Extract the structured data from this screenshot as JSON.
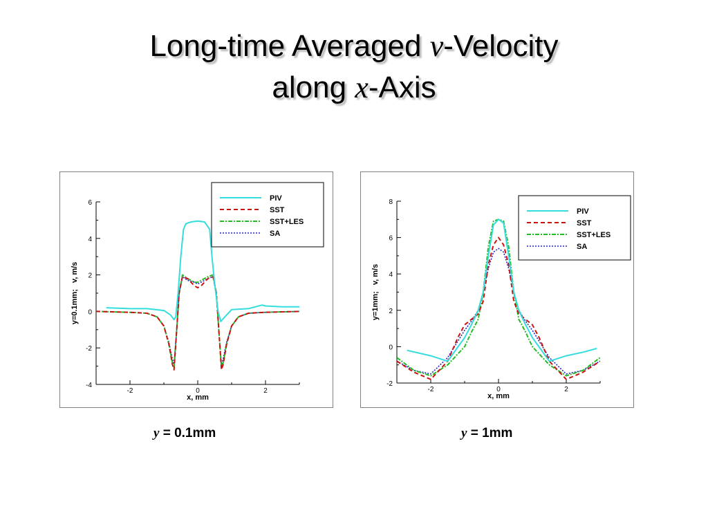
{
  "slide": {
    "title_line1_a": "Long-time Averaged ",
    "title_line1_var": "v",
    "title_line1_b": "-Velocity",
    "title_line2_a": "along ",
    "title_line2_var": "x",
    "title_line2_b": "-Axis"
  },
  "captions": [
    {
      "var": "y",
      "text": " = 0.1mm"
    },
    {
      "var": "y",
      "text": " = 1mm"
    }
  ],
  "colors": {
    "PIV": "#33dddd",
    "SST": "#cc1111",
    "SST+LES": "#22bb22",
    "SA": "#2222cc"
  },
  "chart_data": [
    {
      "type": "line",
      "xlabel": "x, mm",
      "ylabel": "y=0.1mm;   v, m/s",
      "xlim": [
        -3,
        3
      ],
      "ylim": [
        -4,
        6
      ],
      "xticks": [
        -2,
        0,
        2
      ],
      "yticks": [
        -4,
        -2,
        0,
        2,
        4,
        6
      ],
      "legend_position": "top-right",
      "series": [
        {
          "name": "PIV",
          "x": [
            -2.7,
            -2.0,
            -1.5,
            -1.0,
            -0.8,
            -0.7,
            -0.65,
            -0.58,
            -0.5,
            -0.42,
            -0.35,
            -0.2,
            0,
            0.2,
            0.35,
            0.42,
            0.5,
            0.6,
            0.68,
            0.8,
            1.0,
            1.5,
            1.9,
            2.0,
            2.5,
            3.0
          ],
          "y": [
            0.2,
            0.15,
            0.15,
            0.05,
            -0.2,
            -0.45,
            -0.3,
            1.0,
            3.0,
            4.5,
            4.8,
            4.9,
            4.95,
            4.9,
            4.5,
            3.0,
            1.5,
            0.0,
            -0.55,
            -0.3,
            0.1,
            0.15,
            0.35,
            0.3,
            0.25,
            0.25
          ]
        },
        {
          "name": "SST",
          "x": [
            -3.0,
            -2.0,
            -1.5,
            -1.2,
            -1.0,
            -0.85,
            -0.75,
            -0.7,
            -0.62,
            -0.55,
            -0.45,
            -0.3,
            -0.1,
            0,
            0.1,
            0.3,
            0.45,
            0.55,
            0.62,
            0.7,
            0.75,
            0.85,
            1.0,
            1.2,
            1.5,
            2.0,
            3.0
          ],
          "y": [
            0.0,
            -0.05,
            -0.1,
            -0.3,
            -0.8,
            -1.8,
            -2.9,
            -3.2,
            -1.0,
            1.0,
            1.9,
            1.8,
            1.4,
            1.3,
            1.4,
            1.8,
            1.9,
            1.0,
            -1.0,
            -3.2,
            -2.9,
            -1.8,
            -0.8,
            -0.3,
            -0.1,
            -0.05,
            0.0
          ]
        },
        {
          "name": "SST+LES",
          "x": [
            -3.0,
            -2.0,
            -1.5,
            -1.2,
            -1.0,
            -0.85,
            -0.75,
            -0.7,
            -0.62,
            -0.55,
            -0.45,
            -0.3,
            -0.1,
            0,
            0.1,
            0.3,
            0.45,
            0.55,
            0.62,
            0.7,
            0.75,
            0.85,
            1.0,
            1.2,
            1.5,
            2.0,
            3.0
          ],
          "y": [
            0.0,
            -0.05,
            -0.1,
            -0.3,
            -0.8,
            -1.8,
            -2.8,
            -3.1,
            -1.0,
            1.0,
            2.0,
            1.8,
            1.6,
            1.6,
            1.7,
            1.9,
            2.0,
            1.0,
            -1.0,
            -3.1,
            -2.8,
            -1.8,
            -0.8,
            -0.3,
            -0.1,
            -0.05,
            0.0
          ]
        },
        {
          "name": "SA",
          "x": [
            -3.0,
            -2.0,
            -1.5,
            -1.2,
            -1.0,
            -0.85,
            -0.75,
            -0.7,
            -0.62,
            -0.55,
            -0.45,
            -0.3,
            -0.1,
            0,
            0.1,
            0.3,
            0.45,
            0.55,
            0.62,
            0.7,
            0.75,
            0.85,
            1.0,
            1.2,
            1.5,
            2.0,
            3.0
          ],
          "y": [
            0.0,
            -0.05,
            -0.1,
            -0.3,
            -0.8,
            -1.7,
            -2.6,
            -2.9,
            -1.0,
            1.0,
            1.9,
            1.7,
            1.6,
            1.5,
            1.6,
            1.8,
            1.9,
            1.0,
            -1.0,
            -2.9,
            -2.6,
            -1.7,
            -0.8,
            -0.3,
            -0.1,
            -0.05,
            0.0
          ]
        }
      ]
    },
    {
      "type": "line",
      "xlabel": "x, mm",
      "ylabel": "y=1mm;   v, m/s",
      "xlim": [
        -3,
        3
      ],
      "ylim": [
        -2,
        8
      ],
      "xticks": [
        -2,
        0,
        2
      ],
      "yticks": [
        -2,
        0,
        2,
        4,
        6,
        8
      ],
      "legend_position": "top-right",
      "series": [
        {
          "name": "PIV",
          "x": [
            -2.7,
            -2.0,
            -1.5,
            -1.0,
            -0.8,
            -0.6,
            -0.45,
            -0.3,
            -0.15,
            0,
            0.15,
            0.3,
            0.45,
            0.6,
            0.8,
            1.0,
            1.5,
            2.0,
            2.5,
            2.9
          ],
          "y": [
            -0.2,
            -0.5,
            -0.8,
            0.5,
            1.2,
            2.0,
            3.0,
            5.0,
            6.7,
            7.0,
            6.8,
            5.0,
            3.0,
            2.0,
            1.2,
            0.5,
            -0.8,
            -0.5,
            -0.3,
            -0.1
          ]
        },
        {
          "name": "SST",
          "x": [
            -3.0,
            -2.5,
            -2.0,
            -1.5,
            -1.2,
            -1.0,
            -0.8,
            -0.6,
            -0.45,
            -0.3,
            -0.15,
            0,
            0.15,
            0.3,
            0.45,
            0.6,
            0.8,
            1.0,
            1.2,
            1.5,
            2.0,
            2.5,
            3.0
          ],
          "y": [
            -0.8,
            -1.4,
            -1.8,
            -0.8,
            0.5,
            1.2,
            1.5,
            1.8,
            2.5,
            4.5,
            5.6,
            6.0,
            5.6,
            4.5,
            2.5,
            1.8,
            1.5,
            1.2,
            0.5,
            -0.8,
            -1.8,
            -1.4,
            -0.8
          ]
        },
        {
          "name": "SST+LES",
          "x": [
            -3.0,
            -2.5,
            -2.0,
            -1.5,
            -1.2,
            -1.0,
            -0.8,
            -0.6,
            -0.45,
            -0.3,
            -0.15,
            0,
            0.15,
            0.3,
            0.45,
            0.6,
            0.8,
            1.0,
            1.2,
            1.5,
            2.0,
            2.5,
            3.0
          ],
          "y": [
            -0.6,
            -1.3,
            -1.6,
            -1.0,
            -0.4,
            0.0,
            0.8,
            1.5,
            3.0,
            5.5,
            6.9,
            7.0,
            6.9,
            5.5,
            3.0,
            1.5,
            0.8,
            0.0,
            -0.4,
            -1.0,
            -1.6,
            -1.3,
            -0.6
          ]
        },
        {
          "name": "SA",
          "x": [
            -3.0,
            -2.5,
            -2.0,
            -1.5,
            -1.2,
            -1.0,
            -0.8,
            -0.6,
            -0.45,
            -0.3,
            -0.15,
            0,
            0.15,
            0.3,
            0.45,
            0.6,
            0.8,
            1.0,
            1.2,
            1.5,
            2.0,
            2.5,
            3.0
          ],
          "y": [
            -0.8,
            -1.3,
            -1.5,
            -0.6,
            0.3,
            0.9,
            1.4,
            2.0,
            3.0,
            4.3,
            5.2,
            5.4,
            5.2,
            4.3,
            3.0,
            2.0,
            1.4,
            0.9,
            0.3,
            -0.6,
            -1.5,
            -1.3,
            -0.8
          ]
        }
      ]
    }
  ]
}
